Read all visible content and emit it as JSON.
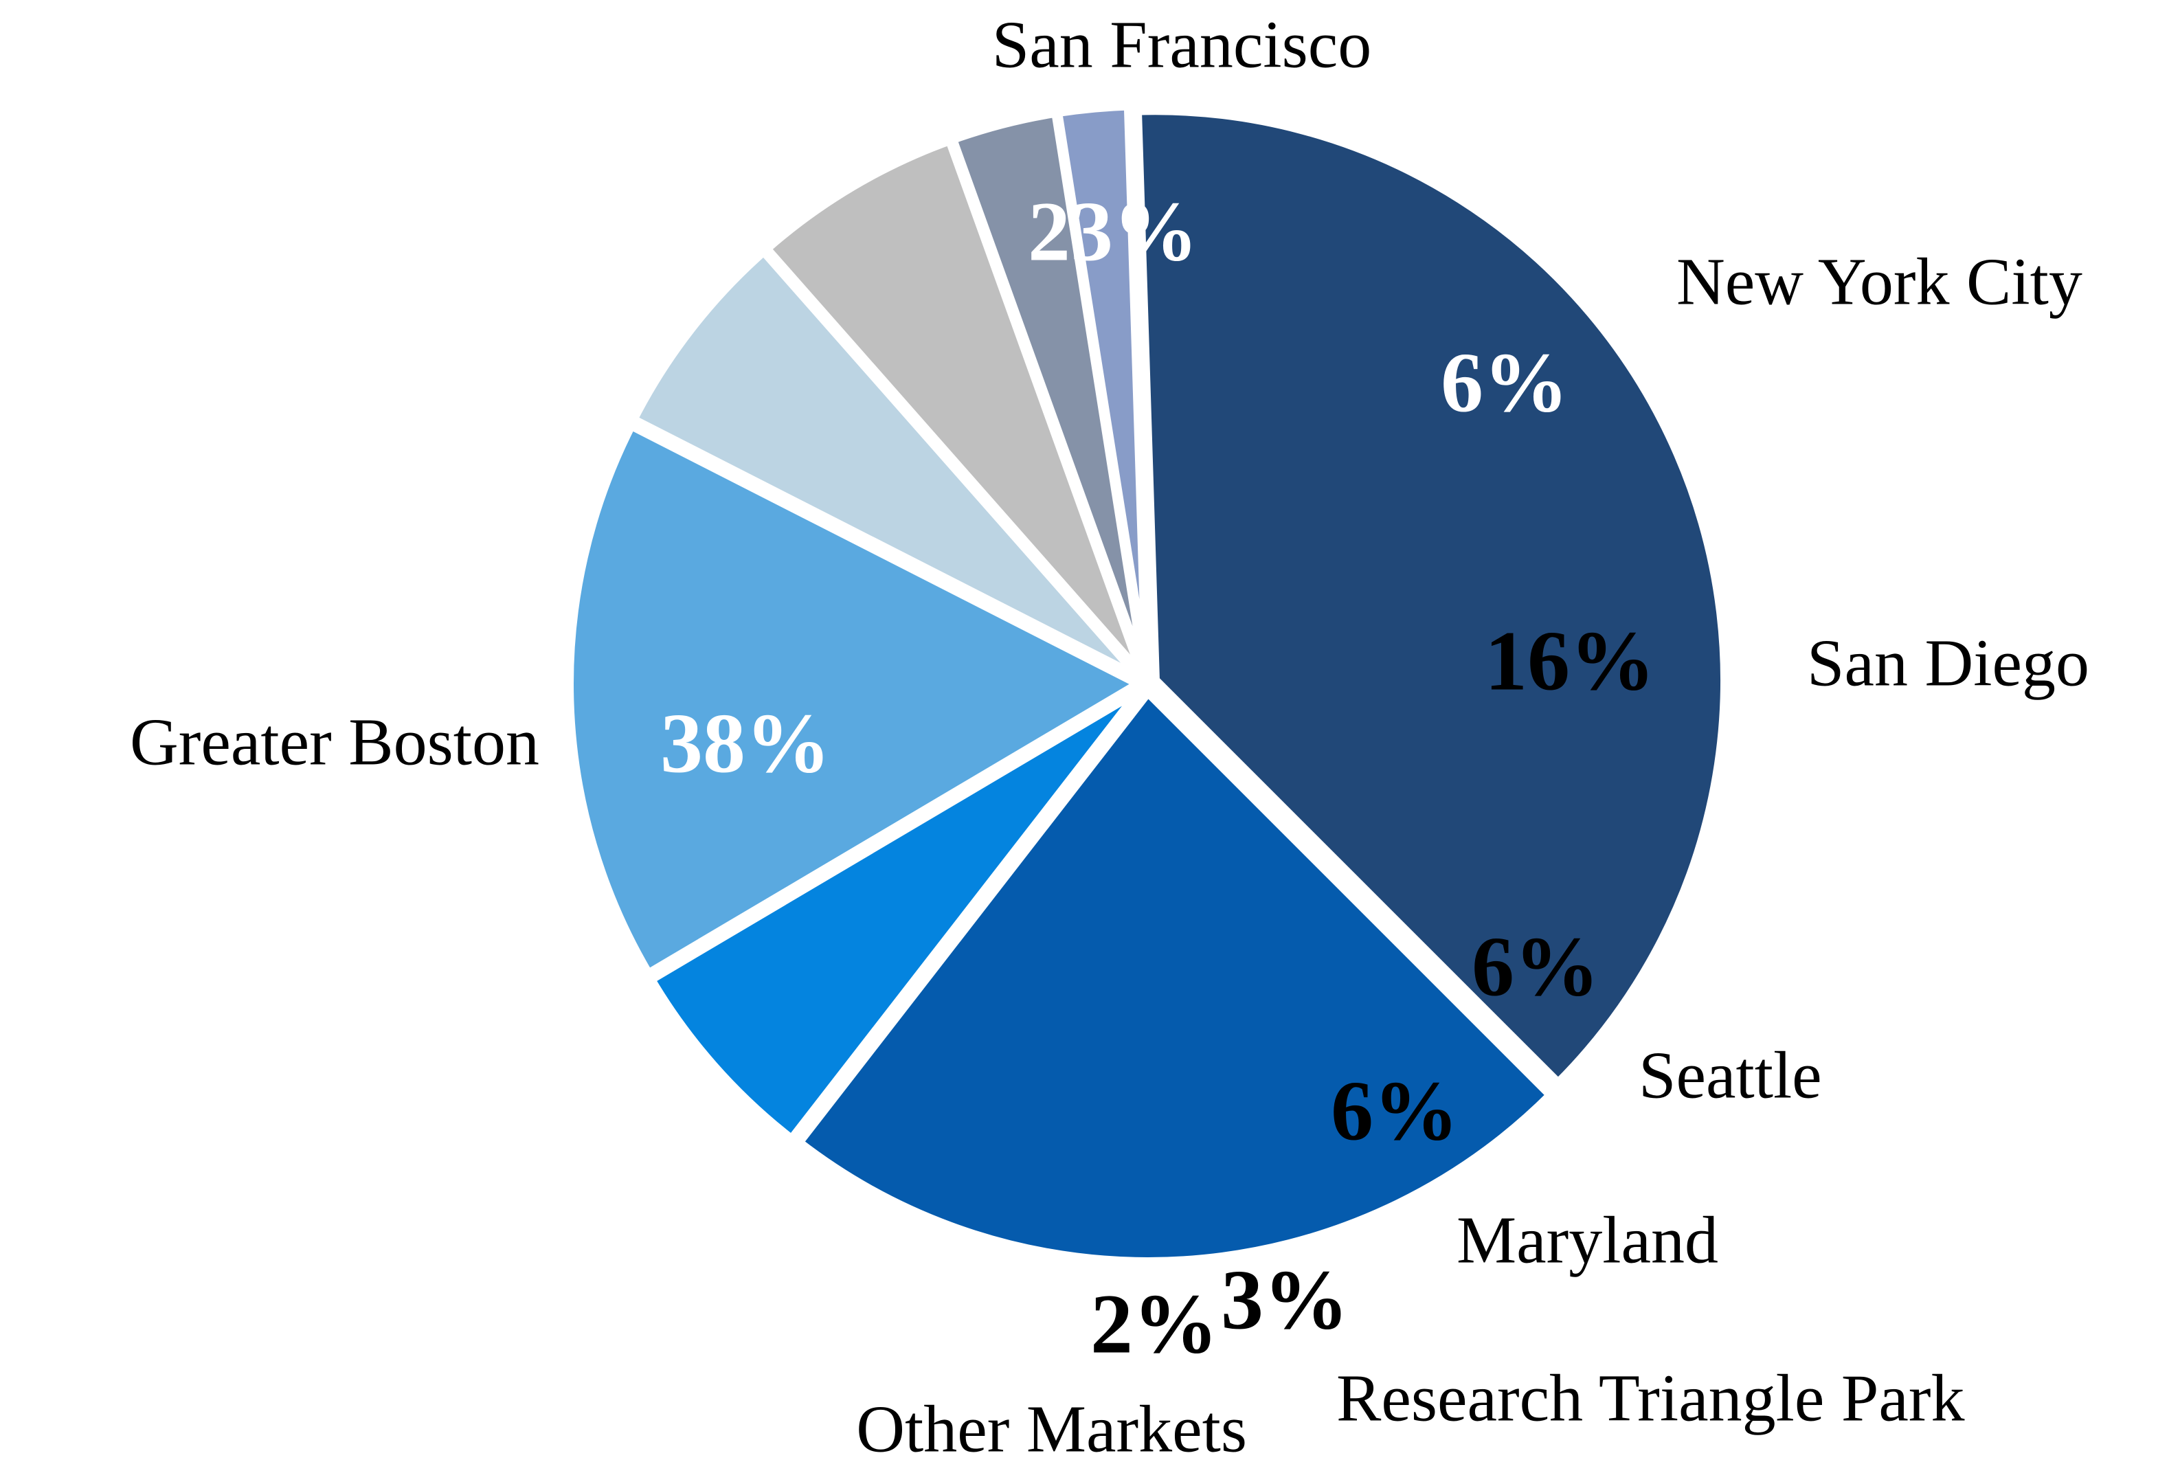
{
  "chart_data": {
    "type": "pie",
    "title": "",
    "slices": [
      {
        "name": "San Francisco",
        "value": 23,
        "label": "23%",
        "color": "#055BAD",
        "label_color": "#FFFFFF"
      },
      {
        "name": "New York City",
        "value": 6,
        "label": "6%",
        "color": "#0484DF",
        "label_color": "#FFFFFF"
      },
      {
        "name": "San Diego",
        "value": 16,
        "label": "16%",
        "color": "#5AA9E0",
        "label_color": "#000000"
      },
      {
        "name": "Seattle",
        "value": 6,
        "label": "6%",
        "color": "#BCD4E3",
        "label_color": "#000000"
      },
      {
        "name": "Maryland",
        "value": 6,
        "label": "6%",
        "color": "#BFBFBF",
        "label_color": "#000000"
      },
      {
        "name": "Research Triangle Park",
        "value": 3,
        "label": "3%",
        "color": "#8592A8",
        "label_color": "#000000"
      },
      {
        "name": "Other Markets",
        "value": 2,
        "label": "2%",
        "color": "#889CC8",
        "label_color": "#000000"
      },
      {
        "name": "Greater Boston",
        "value": 38,
        "label": "38%",
        "color": "#214878",
        "label_color": "#FFFFFF"
      }
    ],
    "legend": "none (category labels placed beside slices)",
    "separator_color": "#FFFFFF"
  }
}
